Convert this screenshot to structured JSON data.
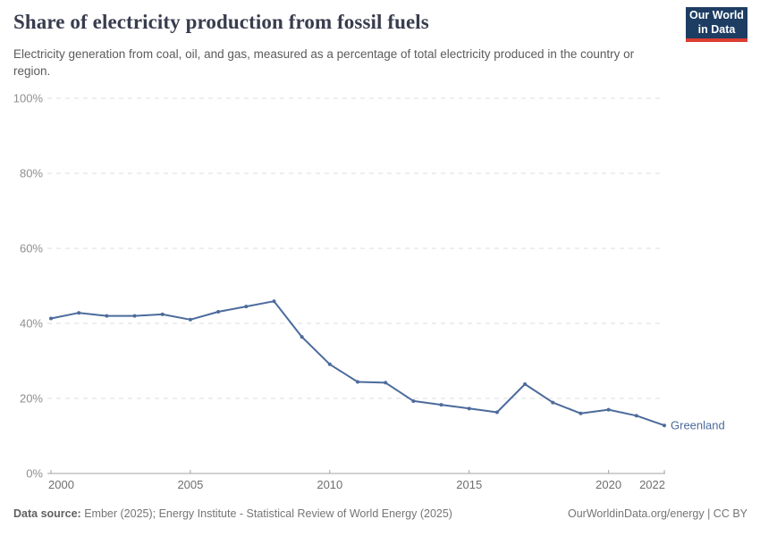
{
  "header": {
    "title": "Share of electricity production from fossil fuels",
    "subtitle": "Electricity generation from coal, oil, and gas, measured as a percentage of total electricity produced in the country or region.",
    "logo": {
      "line1": "Our World",
      "line2": "in Data",
      "bg_color": "#1d3d63",
      "accent_color": "#dc3e31"
    }
  },
  "chart_data": {
    "type": "line",
    "title": "Share of electricity production from fossil fuels",
    "subtitle": "Electricity generation from coal, oil, and gas, measured as a percentage of total electricity produced in the country or region.",
    "x": [
      2000,
      2001,
      2002,
      2003,
      2004,
      2005,
      2006,
      2007,
      2008,
      2009,
      2010,
      2011,
      2012,
      2013,
      2014,
      2015,
      2016,
      2017,
      2018,
      2019,
      2020,
      2021,
      2022
    ],
    "series": [
      {
        "name": "Greenland",
        "color": "#4c6b9c",
        "values": [
          41.3,
          42.8,
          42.0,
          42.0,
          42.4,
          41.0,
          43.1,
          44.5,
          45.9,
          36.4,
          29.1,
          24.4,
          24.2,
          19.3,
          18.3,
          17.3,
          16.3,
          23.8,
          18.9,
          16.0,
          17.0,
          15.4,
          12.8
        ]
      }
    ],
    "xlim": [
      2000,
      2022
    ],
    "ylim": [
      0,
      100
    ],
    "x_ticks": [
      2000,
      2005,
      2010,
      2015,
      2020,
      2022
    ],
    "x_tick_labels": [
      "2000",
      "2005",
      "2010",
      "2015",
      "2020",
      "2022"
    ],
    "y_ticks": [
      0,
      20,
      40,
      60,
      80,
      100
    ],
    "y_tick_labels": [
      "0%",
      "20%",
      "40%",
      "60%",
      "80%",
      "100%"
    ],
    "grid": "horizontal-dashed",
    "legend_position": "end-of-line-label",
    "entity_label": "Greenland"
  },
  "footer": {
    "source_label": "Data source:",
    "source_text": " Ember (2025); Energy Institute - Statistical Review of World Energy (2025)",
    "right_text": "OurWorldinData.org/energy | CC BY"
  }
}
